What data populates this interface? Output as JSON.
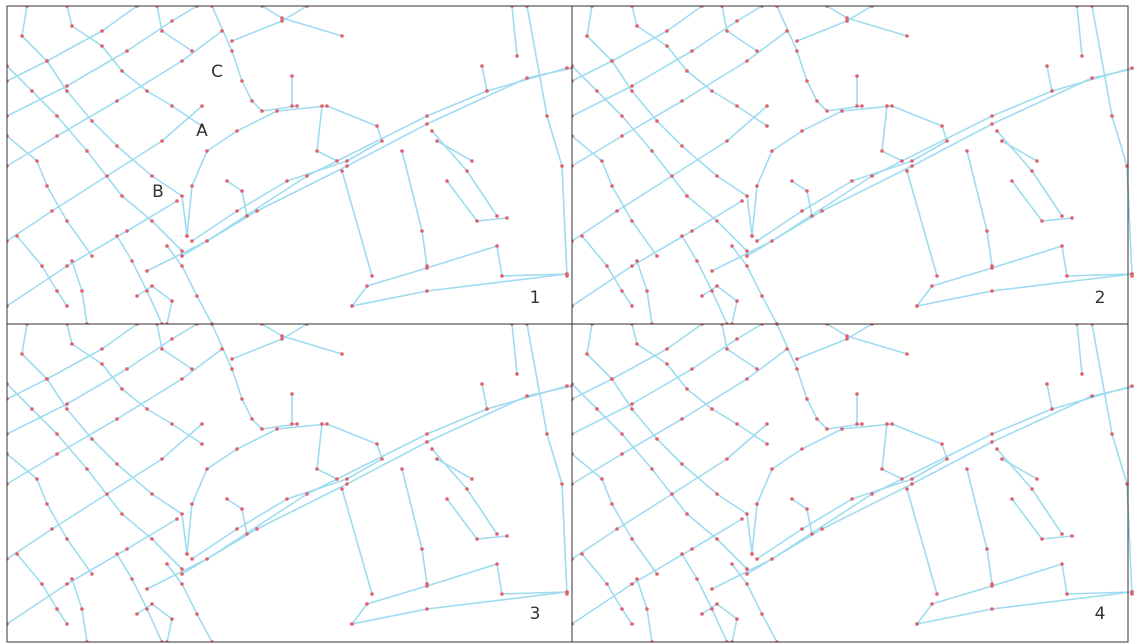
{
  "panels": [
    {
      "label": "1"
    },
    {
      "label": "2"
    },
    {
      "label": "3"
    },
    {
      "label": "4"
    }
  ],
  "annotations": [
    "A",
    "B",
    "C"
  ]
}
